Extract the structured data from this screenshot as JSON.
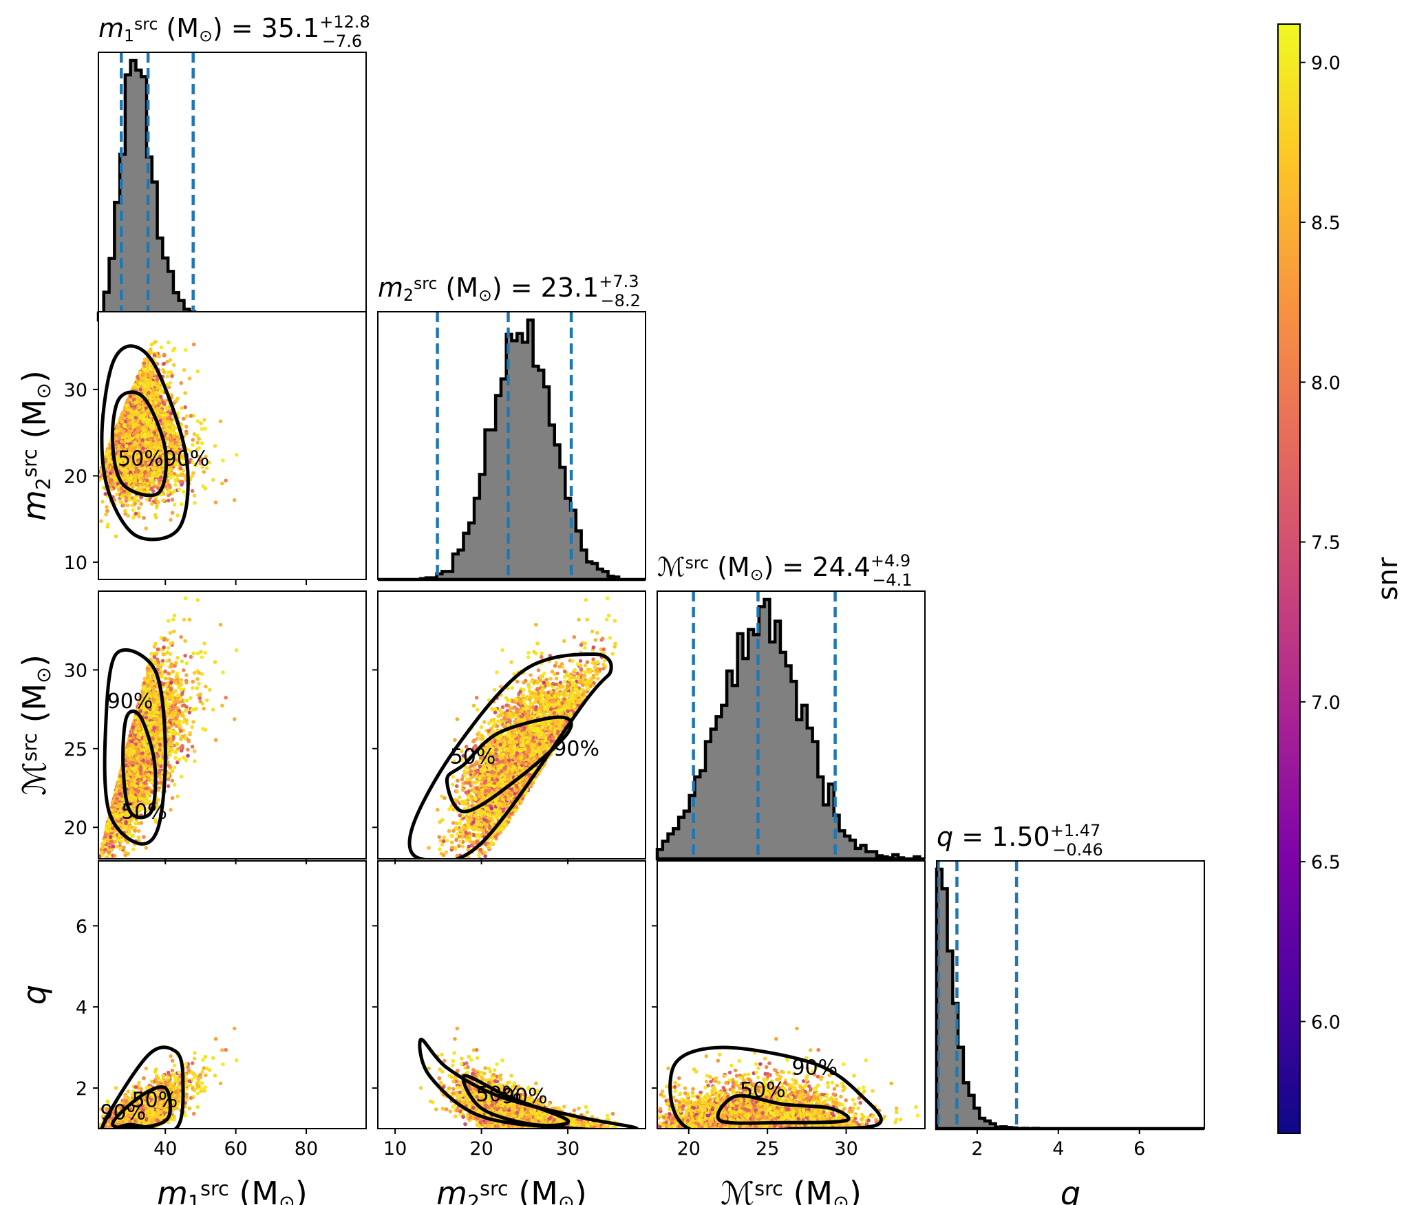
{
  "chart_data": {
    "type": "corner",
    "parameters": [
      {
        "key": "m1",
        "label_html": "<tspan font-style='italic'>m</tspan><tspan baseline-shift='-25%' font-size='0.62em'>1</tspan><tspan baseline-shift='45%' font-size='0.62em'>src</tspan> (M<tspan baseline-shift='-25%' font-size='0.62em'>⊙</tspan>)",
        "median": "35.1",
        "plus": "+12.8",
        "minus": "−7.6",
        "range": [
          21,
          97
        ],
        "ticks": [
          40,
          60,
          80
        ],
        "median_value": 35.1,
        "lower": 27.5,
        "upper": 47.9
      },
      {
        "key": "m2",
        "label_html": "<tspan font-style='italic'>m</tspan><tspan baseline-shift='-25%' font-size='0.62em'>2</tspan><tspan baseline-shift='45%' font-size='0.62em'>src</tspan> (M<tspan baseline-shift='-25%' font-size='0.62em'>⊙</tspan>)",
        "median": "23.1",
        "plus": "+7.3",
        "minus": "−8.2",
        "range": [
          8,
          39
        ],
        "ticks": [
          10,
          20,
          30
        ],
        "median_value": 23.1,
        "lower": 14.9,
        "upper": 30.4
      },
      {
        "key": "mc",
        "label_html": "<tspan font-style='italic'>ℳ</tspan><tspan baseline-shift='45%' font-size='0.62em'>src</tspan> (M<tspan baseline-shift='-25%' font-size='0.62em'>⊙</tspan>)",
        "median": "24.4",
        "plus": "+4.9",
        "minus": "−4.1",
        "range": [
          18,
          35
        ],
        "ticks": [
          20,
          25,
          30
        ],
        "median_value": 24.4,
        "lower": 20.3,
        "upper": 29.3
      },
      {
        "key": "q",
        "label_html": "<tspan font-style='italic'>q</tspan>",
        "median": "1.50",
        "plus": "+1.47",
        "minus": "−0.46",
        "range": [
          1,
          7.6
        ],
        "ticks": [
          2,
          4,
          6
        ],
        "median_value": 1.5,
        "lower": 1.04,
        "upper": 2.97
      }
    ],
    "row_ticks": {
      "m2": [
        10,
        20,
        30
      ],
      "mc": [
        20,
        25,
        30
      ],
      "q": [
        2,
        4,
        6
      ]
    },
    "contour_levels": [
      "50%",
      "90%"
    ],
    "colorbar": {
      "label": "snr",
      "range": [
        5.65,
        9.12
      ],
      "ticks": [
        "6.0",
        "6.5",
        "7.0",
        "7.5",
        "8.0",
        "8.5",
        "9.0"
      ],
      "tick_values": [
        6.0,
        6.5,
        7.0,
        7.5,
        8.0,
        8.5,
        9.0
      ],
      "colormap": "plasma"
    },
    "colors": {
      "hist_fill": "#808080",
      "quantile_line": "#1f77b4",
      "contour": "#000000"
    }
  }
}
